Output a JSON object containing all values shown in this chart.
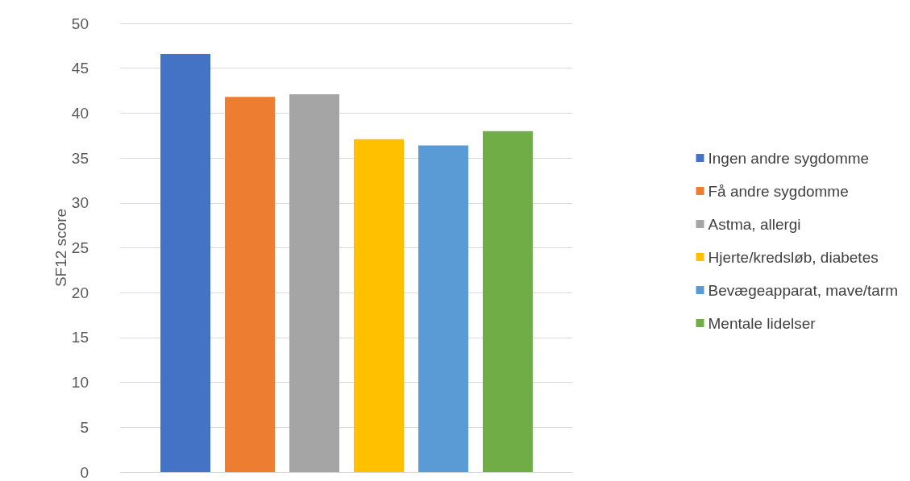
{
  "chart_data": {
    "type": "bar",
    "ylabel": "SF12 score",
    "categories": [
      null
    ],
    "series": [
      {
        "name": "Ingen andre sygdomme",
        "color": "#4472c4",
        "values": [
          46.6
        ]
      },
      {
        "name": "Få andre sygdomme",
        "color": "#ed7d31",
        "values": [
          41.8
        ]
      },
      {
        "name": "Astma, allergi",
        "color": "#a5a5a5",
        "values": [
          42.1
        ]
      },
      {
        "name": "Hjerte/kredsløb, diabetes",
        "color": "#ffc000",
        "values": [
          37.1
        ]
      },
      {
        "name": "Bevægeapparat, mave/tarm",
        "color": "#5b9bd5",
        "values": [
          36.4
        ]
      },
      {
        "name": "Mentale lidelser",
        "color": "#70ad47",
        "values": [
          38.0
        ]
      }
    ],
    "ylim": [
      0,
      50
    ],
    "yticks": [
      0,
      5,
      10,
      15,
      20,
      25,
      30,
      35,
      40,
      45,
      50
    ],
    "grid": "y",
    "legend": "right"
  }
}
